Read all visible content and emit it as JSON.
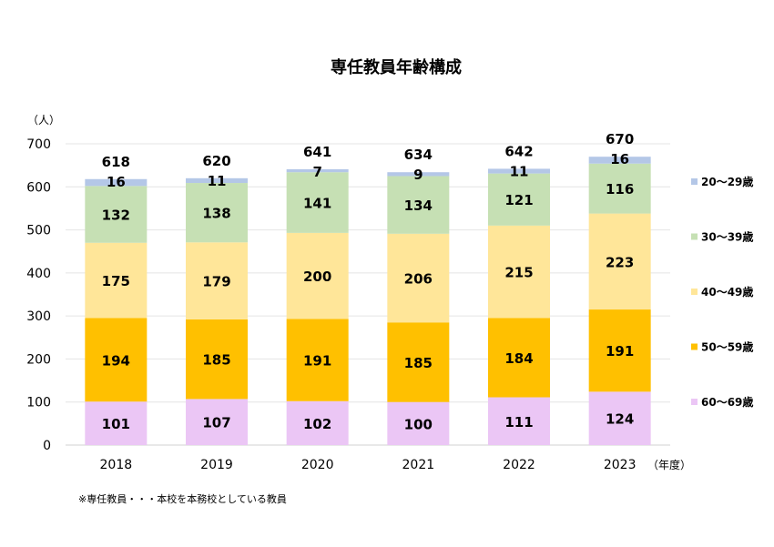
{
  "chart_data": {
    "type": "bar",
    "stacked": true,
    "title": "専任教員年齢構成",
    "ylabel": "（人）",
    "xlabel": "（年度）",
    "ylim": [
      0,
      700
    ],
    "yticks": [
      0,
      100,
      200,
      300,
      400,
      500,
      600,
      700
    ],
    "grid": true,
    "legend_position": "right",
    "categories": [
      "2018",
      "2019",
      "2020",
      "2021",
      "2022",
      "2023"
    ],
    "series": [
      {
        "name": "60～69歳",
        "color": "#EBC6F5",
        "values": [
          101,
          107,
          102,
          100,
          111,
          124
        ]
      },
      {
        "name": "50～59歳",
        "color": "#FFC000",
        "values": [
          194,
          185,
          191,
          185,
          184,
          191
        ]
      },
      {
        "name": "40～49歳",
        "color": "#FFE699",
        "values": [
          175,
          179,
          200,
          206,
          215,
          223
        ]
      },
      {
        "name": "30～39歳",
        "color": "#C6E0B4",
        "values": [
          132,
          138,
          141,
          134,
          121,
          116
        ]
      },
      {
        "name": "20～29歳",
        "color": "#B4C7E7",
        "values": [
          16,
          11,
          7,
          9,
          11,
          16
        ]
      }
    ],
    "totals": [
      618,
      620,
      641,
      634,
      642,
      670
    ],
    "footnote": "※専任教員・・・本校を本務校としている教員"
  }
}
